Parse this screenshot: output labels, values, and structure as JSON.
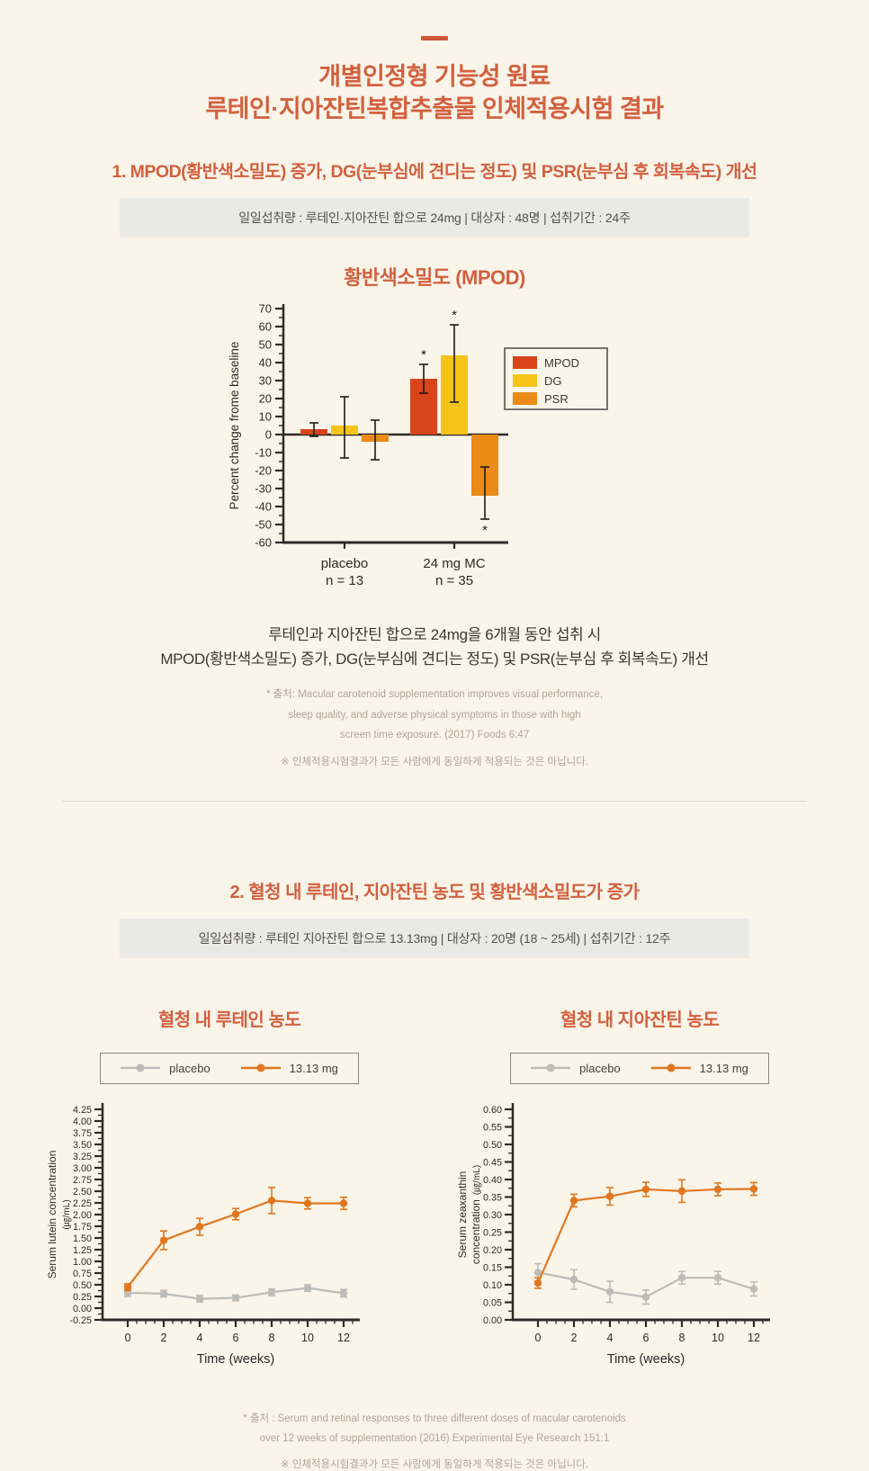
{
  "page": {
    "background": "#FAF4E9",
    "accent_color": "#D2603E",
    "top_dash": "—"
  },
  "header": {
    "title_line1": "개별인정형 기능성 원료",
    "title_line2": "루테인·지아잔틴복합추출물 인체적용시험 결과"
  },
  "section1": {
    "heading": "1. MPOD(황반색소밀도) 증가, DG(눈부심에 견디는 정도) 및 PSR(눈부심 후 회복속도) 개선",
    "info_bar": "일일섭취량 : 루테인·지아잔틴 합으로 24mg  |  대상자 : 48명  |  섭취기간 : 24주",
    "result_line1": "루테인과 지아잔틴 합으로 24mg을 6개월 동안 섭취 시",
    "result_line2": "MPOD(황반색소밀도) 증가, DG(눈부심에 견디는 정도) 및 PSR(눈부심 후 회복속도) 개선",
    "source_line1": "* 출처: Macular carotenoid supplementation improves visual performance,",
    "source_line2": "sleep quality, and adverse physical symptoms in those with high",
    "source_line3": "screen time exposure. (2017) Foods 6:47",
    "disclaimer": "※ 인체적용시험결과가 모든 사람에게 동일하게 적용되는 것은 아닙니다."
  },
  "section2": {
    "heading": "2. 혈청 내 루테인, 지아잔틴 농도 및 황반색소밀도가 증가",
    "info_bar": "일일섭취량 : 루테인  지아잔틴 합으로 13.13mg  |  대상자 : 20명 (18 ~ 25세)  |  섭취기간 : 12주",
    "source_line1": "* 출처 : Serum and retinal responses to three different doses of macular carotenoids",
    "source_line2": "over 12 weeks of supplementation (2016) Experimental Eye Research 151:1",
    "disclaimer": "※ 인체적용시험결과가 모든 사람에게 동일하게 적용되는 것은 아닙니다."
  },
  "chart_data": [
    {
      "id": "mpod-bar",
      "type": "bar",
      "title": "황반색소밀도 (MPOD)",
      "ylabel": "Percent change frome baseline",
      "ylim": [
        -60,
        70
      ],
      "ytick_major": 10,
      "ytick_minor": 5,
      "grid": false,
      "legend_position": "right",
      "categories": [
        "placebo",
        "24 mg MC"
      ],
      "category_counts": [
        "n = 13",
        "n = 35"
      ],
      "series": [
        {
          "name": "MPOD",
          "color": "#D8451B",
          "values": [
            3,
            31
          ],
          "err_minus": [
            4,
            8
          ],
          "err_plus": [
            3.5,
            8
          ],
          "significant": [
            false,
            true
          ]
        },
        {
          "name": "DG",
          "color": "#F5C416",
          "values": [
            5,
            44
          ],
          "err_minus": [
            18,
            26
          ],
          "err_plus": [
            16,
            17
          ],
          "significant": [
            false,
            true
          ]
        },
        {
          "name": "PSR",
          "color": "#E98B16",
          "values": [
            -4,
            -34
          ],
          "err_minus": [
            10,
            13
          ],
          "err_plus": [
            12,
            16
          ],
          "significant": [
            false,
            true
          ]
        }
      ]
    },
    {
      "id": "lutein-line",
      "type": "line",
      "title": "혈청 내 루테인 농도",
      "ylabel_lines": [
        "Serum lutein concentration"
      ],
      "ylabel_unit": "(㎍/mL)",
      "xlabel": "Time (weeks)",
      "x": [
        0,
        2,
        4,
        6,
        8,
        10,
        12
      ],
      "ylim": [
        -0.25,
        4.25
      ],
      "ytick_major": 0.25,
      "y_decimals": 2,
      "grid": false,
      "legend_position": "top",
      "series": [
        {
          "name": "placebo",
          "color": "#BDBCB6",
          "values": [
            0.33,
            0.31,
            0.2,
            0.22,
            0.34,
            0.43,
            0.32
          ],
          "err": [
            0.08,
            0.07,
            0.07,
            0.06,
            0.07,
            0.07,
            0.08
          ]
        },
        {
          "name": "13.13 mg",
          "color": "#E0771F",
          "values": [
            0.45,
            1.45,
            1.74,
            2.01,
            2.3,
            2.24,
            2.24
          ],
          "err": [
            0.07,
            0.2,
            0.18,
            0.12,
            0.28,
            0.12,
            0.13
          ]
        }
      ]
    },
    {
      "id": "zeaxanthin-line",
      "type": "line",
      "title": "혈청 내 지아잔틴 농도",
      "ylabel_lines": [
        "Serum zeaxanthin",
        "concentration"
      ],
      "ylabel_unit": "(㎍/mL)",
      "xlabel": "Time (weeks)",
      "x": [
        0,
        2,
        4,
        6,
        8,
        10,
        12
      ],
      "ylim": [
        0,
        0.6
      ],
      "ytick_major": 0.05,
      "y_decimals": 2,
      "grid": false,
      "legend_position": "top",
      "series": [
        {
          "name": "placebo",
          "color": "#BDBCB6",
          "values": [
            0.135,
            0.115,
            0.08,
            0.065,
            0.12,
            0.12,
            0.088
          ],
          "err": [
            0.025,
            0.028,
            0.03,
            0.02,
            0.018,
            0.018,
            0.02
          ]
        },
        {
          "name": "13.13 mg",
          "color": "#E0771F",
          "values": [
            0.105,
            0.34,
            0.352,
            0.372,
            0.367,
            0.372,
            0.373
          ],
          "err": [
            0.015,
            0.018,
            0.025,
            0.02,
            0.032,
            0.018,
            0.018
          ]
        }
      ]
    }
  ]
}
